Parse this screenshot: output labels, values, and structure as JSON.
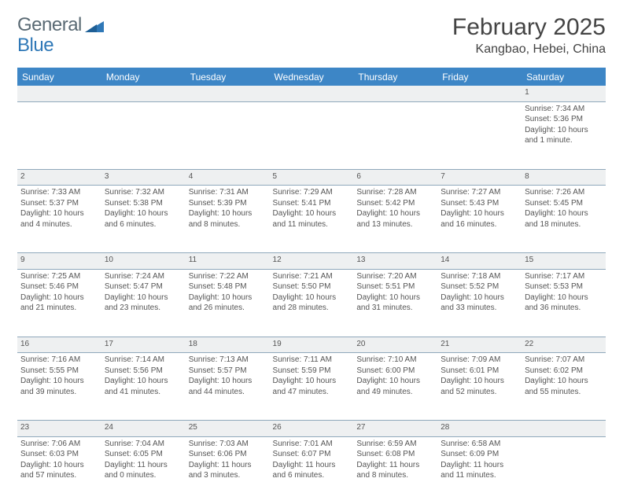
{
  "logo": {
    "text1": "General",
    "text2": "Blue"
  },
  "title": "February 2025",
  "location": "Kangbao, Hebei, China",
  "colors": {
    "header_bg": "#3d86c6",
    "header_text": "#ffffff",
    "daynum_bg": "#eef0f1",
    "border": "#8fa8bb",
    "body_text": "#555555",
    "logo_gray": "#5a6a74",
    "logo_blue": "#2f78b7"
  },
  "day_headers": [
    "Sunday",
    "Monday",
    "Tuesday",
    "Wednesday",
    "Thursday",
    "Friday",
    "Saturday"
  ],
  "weeks": [
    [
      {
        "n": "",
        "lines": []
      },
      {
        "n": "",
        "lines": []
      },
      {
        "n": "",
        "lines": []
      },
      {
        "n": "",
        "lines": []
      },
      {
        "n": "",
        "lines": []
      },
      {
        "n": "",
        "lines": []
      },
      {
        "n": "1",
        "lines": [
          "Sunrise: 7:34 AM",
          "Sunset: 5:36 PM",
          "Daylight: 10 hours",
          "and 1 minute."
        ]
      }
    ],
    [
      {
        "n": "2",
        "lines": [
          "Sunrise: 7:33 AM",
          "Sunset: 5:37 PM",
          "Daylight: 10 hours",
          "and 4 minutes."
        ]
      },
      {
        "n": "3",
        "lines": [
          "Sunrise: 7:32 AM",
          "Sunset: 5:38 PM",
          "Daylight: 10 hours",
          "and 6 minutes."
        ]
      },
      {
        "n": "4",
        "lines": [
          "Sunrise: 7:31 AM",
          "Sunset: 5:39 PM",
          "Daylight: 10 hours",
          "and 8 minutes."
        ]
      },
      {
        "n": "5",
        "lines": [
          "Sunrise: 7:29 AM",
          "Sunset: 5:41 PM",
          "Daylight: 10 hours",
          "and 11 minutes."
        ]
      },
      {
        "n": "6",
        "lines": [
          "Sunrise: 7:28 AM",
          "Sunset: 5:42 PM",
          "Daylight: 10 hours",
          "and 13 minutes."
        ]
      },
      {
        "n": "7",
        "lines": [
          "Sunrise: 7:27 AM",
          "Sunset: 5:43 PM",
          "Daylight: 10 hours",
          "and 16 minutes."
        ]
      },
      {
        "n": "8",
        "lines": [
          "Sunrise: 7:26 AM",
          "Sunset: 5:45 PM",
          "Daylight: 10 hours",
          "and 18 minutes."
        ]
      }
    ],
    [
      {
        "n": "9",
        "lines": [
          "Sunrise: 7:25 AM",
          "Sunset: 5:46 PM",
          "Daylight: 10 hours",
          "and 21 minutes."
        ]
      },
      {
        "n": "10",
        "lines": [
          "Sunrise: 7:24 AM",
          "Sunset: 5:47 PM",
          "Daylight: 10 hours",
          "and 23 minutes."
        ]
      },
      {
        "n": "11",
        "lines": [
          "Sunrise: 7:22 AM",
          "Sunset: 5:48 PM",
          "Daylight: 10 hours",
          "and 26 minutes."
        ]
      },
      {
        "n": "12",
        "lines": [
          "Sunrise: 7:21 AM",
          "Sunset: 5:50 PM",
          "Daylight: 10 hours",
          "and 28 minutes."
        ]
      },
      {
        "n": "13",
        "lines": [
          "Sunrise: 7:20 AM",
          "Sunset: 5:51 PM",
          "Daylight: 10 hours",
          "and 31 minutes."
        ]
      },
      {
        "n": "14",
        "lines": [
          "Sunrise: 7:18 AM",
          "Sunset: 5:52 PM",
          "Daylight: 10 hours",
          "and 33 minutes."
        ]
      },
      {
        "n": "15",
        "lines": [
          "Sunrise: 7:17 AM",
          "Sunset: 5:53 PM",
          "Daylight: 10 hours",
          "and 36 minutes."
        ]
      }
    ],
    [
      {
        "n": "16",
        "lines": [
          "Sunrise: 7:16 AM",
          "Sunset: 5:55 PM",
          "Daylight: 10 hours",
          "and 39 minutes."
        ]
      },
      {
        "n": "17",
        "lines": [
          "Sunrise: 7:14 AM",
          "Sunset: 5:56 PM",
          "Daylight: 10 hours",
          "and 41 minutes."
        ]
      },
      {
        "n": "18",
        "lines": [
          "Sunrise: 7:13 AM",
          "Sunset: 5:57 PM",
          "Daylight: 10 hours",
          "and 44 minutes."
        ]
      },
      {
        "n": "19",
        "lines": [
          "Sunrise: 7:11 AM",
          "Sunset: 5:59 PM",
          "Daylight: 10 hours",
          "and 47 minutes."
        ]
      },
      {
        "n": "20",
        "lines": [
          "Sunrise: 7:10 AM",
          "Sunset: 6:00 PM",
          "Daylight: 10 hours",
          "and 49 minutes."
        ]
      },
      {
        "n": "21",
        "lines": [
          "Sunrise: 7:09 AM",
          "Sunset: 6:01 PM",
          "Daylight: 10 hours",
          "and 52 minutes."
        ]
      },
      {
        "n": "22",
        "lines": [
          "Sunrise: 7:07 AM",
          "Sunset: 6:02 PM",
          "Daylight: 10 hours",
          "and 55 minutes."
        ]
      }
    ],
    [
      {
        "n": "23",
        "lines": [
          "Sunrise: 7:06 AM",
          "Sunset: 6:03 PM",
          "Daylight: 10 hours",
          "and 57 minutes."
        ]
      },
      {
        "n": "24",
        "lines": [
          "Sunrise: 7:04 AM",
          "Sunset: 6:05 PM",
          "Daylight: 11 hours",
          "and 0 minutes."
        ]
      },
      {
        "n": "25",
        "lines": [
          "Sunrise: 7:03 AM",
          "Sunset: 6:06 PM",
          "Daylight: 11 hours",
          "and 3 minutes."
        ]
      },
      {
        "n": "26",
        "lines": [
          "Sunrise: 7:01 AM",
          "Sunset: 6:07 PM",
          "Daylight: 11 hours",
          "and 6 minutes."
        ]
      },
      {
        "n": "27",
        "lines": [
          "Sunrise: 6:59 AM",
          "Sunset: 6:08 PM",
          "Daylight: 11 hours",
          "and 8 minutes."
        ]
      },
      {
        "n": "28",
        "lines": [
          "Sunrise: 6:58 AM",
          "Sunset: 6:09 PM",
          "Daylight: 11 hours",
          "and 11 minutes."
        ]
      },
      {
        "n": "",
        "lines": []
      }
    ]
  ]
}
